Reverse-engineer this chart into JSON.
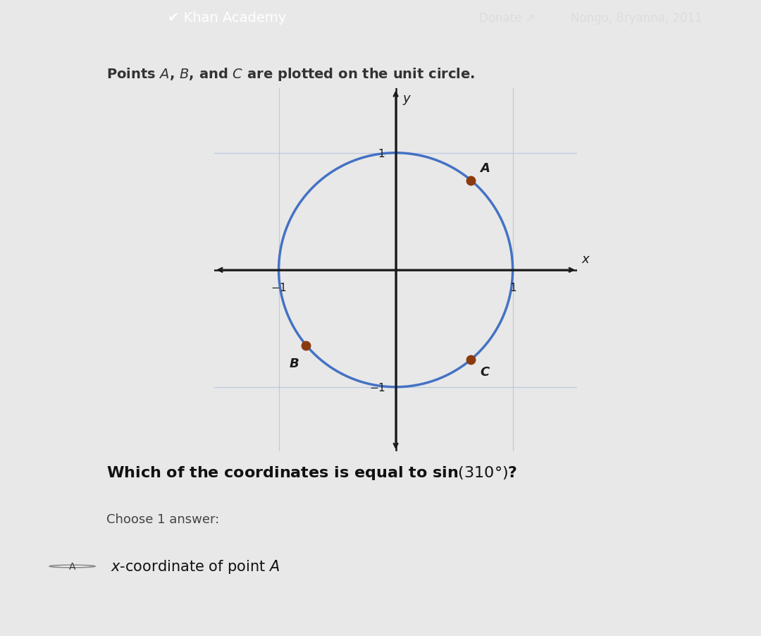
{
  "title_fontsize": 14,
  "question_fontsize": 16,
  "choose_fontsize": 13,
  "answer_fontsize": 15,
  "point_color": "#8B3A0F",
  "point_size": 9,
  "circle_color": "#4472c4",
  "circle_linewidth": 2.5,
  "axis_color": "#1a1a1a",
  "grid_color": "#b0c4de",
  "grid_alpha": 0.8,
  "point_A": [
    0.643,
    0.766
  ],
  "point_B": [
    -0.766,
    -0.643
  ],
  "point_C": [
    0.643,
    -0.766
  ],
  "label_A": "A",
  "label_B": "B",
  "label_C": "C",
  "xlim": [
    -1.55,
    1.55
  ],
  "ylim": [
    -1.55,
    1.55
  ],
  "xlabel": "x",
  "ylabel": "y",
  "header_bg_top": "#b8944a",
  "header_bg_bottom": "#a07830",
  "header_text_color": "#ffffff",
  "content_bg": "#e8e8e8",
  "answer_bar_color": "#8899cc",
  "khan_text": "✔ Khan Academy",
  "donate_text": "Donate ↗",
  "user_text": "Nongo, Bryanna, 2011",
  "title_text": "Points A, B, and C are plotted on the unit circle.",
  "question_text": "Which of the coordinates is equal to sin(310°)?",
  "choose_text": "Choose 1 answer:",
  "answer_text": "x-coordinate of point A"
}
